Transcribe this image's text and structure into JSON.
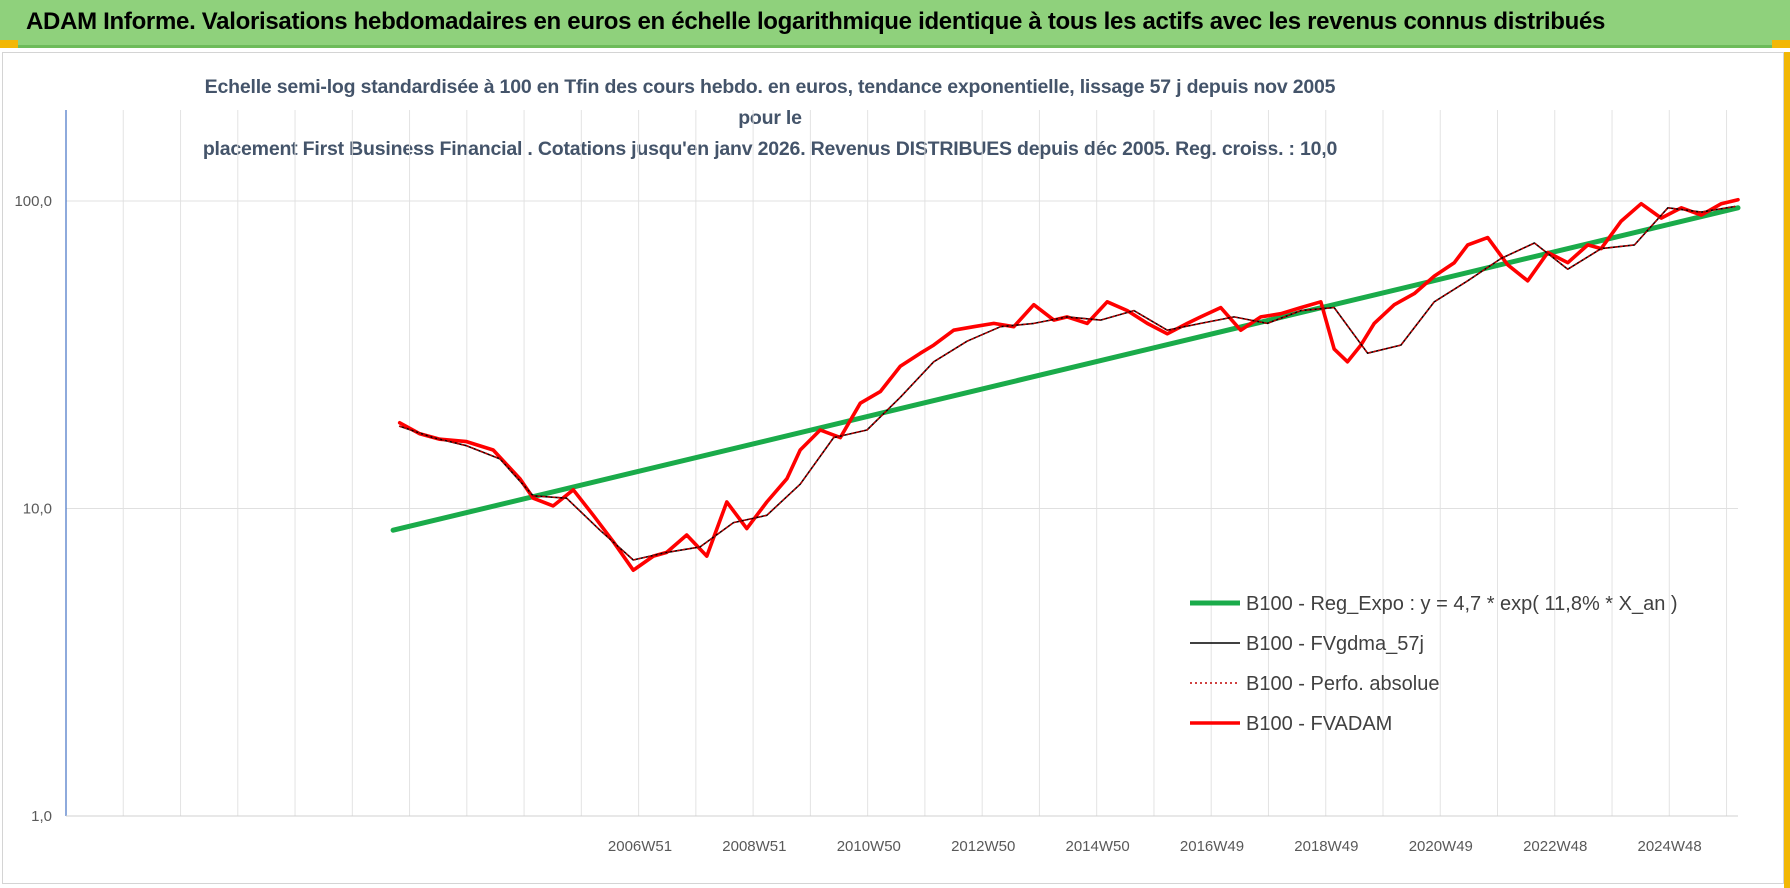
{
  "header": {
    "title": "ADAM Informe. Valorisations hebdomadaires en euros en échelle logarithmique identique à tous les actifs avec les revenus connus distribués"
  },
  "colors": {
    "banner": "#8fd17c",
    "accent": "#f2b705",
    "regression": "#1aab4a",
    "smoothed": "#000000",
    "absolute": "#c00000",
    "fvadam": "#ff0000",
    "title_text": "#44546a"
  },
  "chart_data": {
    "type": "line",
    "title_line1": "Echelle semi-log standardisée à 100 en Tfin des cours hebdo. en euros, tendance exponentielle, lissage 57 j depuis nov 2005 pour le",
    "title_line2": "placement First Business Financial . Cotations jusqu'en janv 2026. Revenus DISTRIBUES depuis déc 2005. Reg. croiss. : 10,0",
    "y_scale": "log",
    "ylim": [
      1,
      180
    ],
    "y_ticks": [
      1,
      10,
      100
    ],
    "y_tick_labels": [
      "1,0",
      "10,0",
      "100,0"
    ],
    "x_tick_labels": [
      "2006W51",
      "2008W51",
      "2010W50",
      "2012W50",
      "2014W50",
      "2016W49",
      "2018W49",
      "2020W49",
      "2022W48",
      "2024W48"
    ],
    "x_start_year": 2001.0,
    "x_end_year": 2026.05,
    "grid": true,
    "legend_position": "bottom-right",
    "series": [
      {
        "name": "B100 - Reg_Expo : y = 4,7 * exp( 11,8% * X_an )",
        "style": "thick-green",
        "x": [
          2005.9,
          2026.05
        ],
        "y": [
          8.5,
          95
        ]
      },
      {
        "name": "B100 - FVgdma_57j",
        "style": "thin-black",
        "x": [
          2006.0,
          2006.5,
          2007.0,
          2007.5,
          2008.0,
          2008.5,
          2009.0,
          2009.5,
          2010.0,
          2010.5,
          2011.0,
          2011.5,
          2012.0,
          2012.5,
          2013.0,
          2013.5,
          2014.0,
          2014.5,
          2015.0,
          2015.5,
          2016.0,
          2016.5,
          2017.0,
          2017.5,
          2018.0,
          2018.5,
          2019.0,
          2019.5,
          2020.0,
          2020.5,
          2021.0,
          2021.5,
          2022.0,
          2022.5,
          2023.0,
          2023.5,
          2024.0,
          2024.5,
          2025.0,
          2025.5,
          2026.0
        ],
        "y": [
          18.5,
          17,
          16,
          14.5,
          11,
          10.8,
          8.5,
          6.8,
          7.2,
          7.5,
          9,
          9.5,
          12,
          17,
          18,
          23,
          30,
          35,
          39,
          40,
          42,
          41,
          44,
          38,
          40,
          42,
          40,
          44,
          45,
          32,
          34,
          47,
          55,
          65,
          73,
          60,
          70,
          72,
          95,
          92,
          96
        ]
      },
      {
        "name": "B100 - Perfo. absolue",
        "style": "dotted-darkred",
        "x": [
          2006.0,
          2006.5,
          2007.0,
          2007.5,
          2008.0,
          2008.5,
          2009.0,
          2009.5,
          2010.0,
          2010.5,
          2011.0,
          2011.5,
          2012.0,
          2012.5,
          2013.0,
          2013.5,
          2014.0,
          2014.5,
          2015.0,
          2015.5,
          2016.0,
          2016.5,
          2017.0,
          2017.5,
          2018.0,
          2018.5,
          2019.0,
          2019.5,
          2020.0,
          2020.5,
          2021.0,
          2021.5,
          2022.0,
          2022.5,
          2023.0,
          2023.5,
          2024.0,
          2024.5,
          2025.0,
          2025.5,
          2026.0
        ],
        "y": [
          18.5,
          17,
          16,
          14.5,
          11,
          10.8,
          8.5,
          6.8,
          7.2,
          7.5,
          9,
          9.5,
          12,
          17,
          18,
          23,
          30,
          35,
          39,
          40,
          42,
          41,
          44,
          38,
          40,
          42,
          40,
          44,
          45,
          32,
          34,
          47,
          55,
          65,
          73,
          60,
          70,
          72,
          95,
          92,
          96
        ]
      },
      {
        "name": "B100 - FVADAM",
        "style": "thick-red",
        "x": [
          2006.0,
          2006.3,
          2006.6,
          2007.0,
          2007.4,
          2007.8,
          2008.0,
          2008.3,
          2008.6,
          2008.9,
          2009.2,
          2009.5,
          2009.8,
          2010.0,
          2010.3,
          2010.6,
          2010.9,
          2011.2,
          2011.5,
          2011.8,
          2012.0,
          2012.3,
          2012.6,
          2012.9,
          2013.2,
          2013.5,
          2013.8,
          2014.0,
          2014.3,
          2014.6,
          2014.9,
          2015.2,
          2015.5,
          2015.8,
          2016.0,
          2016.3,
          2016.6,
          2016.9,
          2017.2,
          2017.5,
          2017.8,
          2018.0,
          2018.3,
          2018.6,
          2018.9,
          2019.2,
          2019.5,
          2019.8,
          2020.0,
          2020.2,
          2020.4,
          2020.6,
          2020.9,
          2021.2,
          2021.5,
          2021.8,
          2022.0,
          2022.3,
          2022.6,
          2022.9,
          2023.2,
          2023.5,
          2023.8,
          2024.0,
          2024.3,
          2024.6,
          2024.9,
          2025.2,
          2025.5,
          2025.8,
          2026.05
        ],
        "y": [
          19,
          17.5,
          16.8,
          16.5,
          15.5,
          12.5,
          10.8,
          10.2,
          11.5,
          9.5,
          7.8,
          6.3,
          7.0,
          7.2,
          8.2,
          7.0,
          10.5,
          8.6,
          10.5,
          12.5,
          15.5,
          18,
          17,
          22,
          24,
          29,
          32,
          34,
          38,
          39,
          40,
          39,
          46,
          41,
          42,
          40,
          47,
          44,
          40,
          37,
          40,
          42,
          45,
          38,
          42,
          43,
          45,
          47,
          33,
          30,
          34,
          40,
          46,
          50,
          57,
          63,
          72,
          76,
          62,
          55,
          68,
          63,
          72,
          70,
          86,
          98,
          88,
          95,
          90,
          98,
          101
        ]
      }
    ]
  }
}
